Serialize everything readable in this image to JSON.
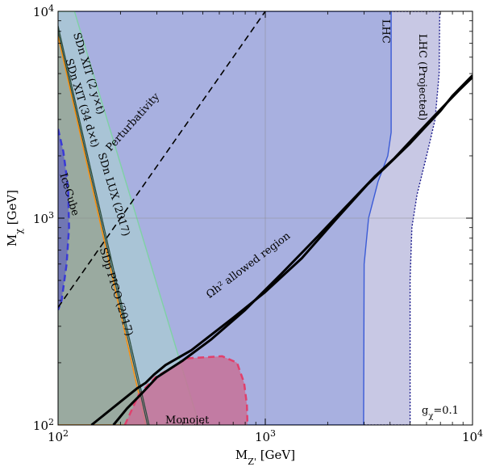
{
  "chart_data": {
    "type": "area",
    "title": "",
    "xlabel": "M_Z' [GeV]",
    "ylabel": "M_χ [GeV]",
    "xscale": "log",
    "yscale": "log",
    "xlim": [
      100,
      10000
    ],
    "ylim": [
      100,
      10000
    ],
    "grid": true,
    "x_ticks": [
      {
        "value": 100,
        "mant": "10",
        "exp": "2"
      },
      {
        "value": 1000,
        "mant": "10",
        "exp": "3"
      },
      {
        "value": 10000,
        "mant": "10",
        "exp": "4"
      }
    ],
    "y_ticks": [
      {
        "value": 100,
        "mant": "10",
        "exp": "2"
      },
      {
        "value": 1000,
        "mant": "10",
        "exp": "3"
      },
      {
        "value": 10000,
        "mant": "10",
        "exp": "4"
      }
    ],
    "regions": [
      {
        "name": "LHC (Projected)",
        "fill": "#c8c8e4",
        "edge": "#1a1a8c",
        "edge_style": "dotted",
        "boundary": [
          [
            100,
            10000
          ],
          [
            6950,
            10000
          ],
          [
            6900,
            5000
          ],
          [
            6600,
            3000
          ],
          [
            6000,
            2000
          ],
          [
            5400,
            1300
          ],
          [
            5100,
            900
          ],
          [
            5000,
            500
          ],
          [
            5000,
            100
          ],
          [
            100,
            100
          ]
        ]
      },
      {
        "name": "LHC",
        "fill": "#a8b0e0",
        "edge": "#3b5bd6",
        "edge_style": "solid",
        "boundary": [
          [
            100,
            10000
          ],
          [
            4050,
            10000
          ],
          [
            4050,
            2600
          ],
          [
            3900,
            2000
          ],
          [
            3500,
            1500
          ],
          [
            3150,
            1000
          ],
          [
            3000,
            600
          ],
          [
            2980,
            100
          ],
          [
            100,
            100
          ]
        ]
      },
      {
        "name": "SDn XIT (2 y×t)",
        "fill": "#a9c4d6",
        "edge": "#7fd1a5",
        "edge_style": "solid",
        "boundary": [
          [
            100,
            10000
          ],
          [
            120,
            10000
          ],
          [
            480,
            100
          ],
          [
            100,
            100
          ]
        ]
      },
      {
        "name": "SDp PICO (2017)",
        "fill": "#9aaaa0",
        "edge": "#ff8c00",
        "edge_style": "solid",
        "boundary": [
          [
            100,
            7600
          ],
          [
            265,
            100
          ],
          [
            100,
            100
          ]
        ]
      },
      {
        "name": "IceCube",
        "fill": "#6a6fb6",
        "edge": "#3a3ad6",
        "edge_style": "dashed",
        "boundary": [
          [
            100,
            2700
          ],
          [
            106,
            2100
          ],
          [
            112,
            1400
          ],
          [
            113,
            900
          ],
          [
            110,
            600
          ],
          [
            104,
            400
          ],
          [
            100,
            360
          ]
        ]
      },
      {
        "name": "Monojet",
        "fill": "#c77298",
        "edge": "#e0406c",
        "edge_style": "dashed",
        "boundary": [
          [
            210,
            100
          ],
          [
            245,
            140
          ],
          [
            295,
            170
          ],
          [
            420,
            210
          ],
          [
            620,
            215
          ],
          [
            730,
            200
          ],
          [
            790,
            160
          ],
          [
            815,
            125
          ],
          [
            820,
            100
          ]
        ]
      }
    ],
    "lines": [
      {
        "name": "Perturbativity",
        "style": "dashed",
        "color": "#000000",
        "points": [
          [
            100,
            370
          ],
          [
            1000,
            10000
          ]
        ]
      },
      {
        "name": "SDn XIT (34 d×t)",
        "style": "solid",
        "color": "#2f4f3f",
        "points": [
          [
            100,
            8500
          ],
          [
            275,
            100
          ]
        ]
      },
      {
        "name": "SDn LUX (2017)",
        "style": "solid",
        "color": "#2f4f3f",
        "points": [
          [
            100,
            8000
          ],
          [
            270,
            100
          ]
        ]
      },
      {
        "name": "Ωh² allowed region (upper)",
        "style": "solid",
        "color": "#000000",
        "points": [
          [
            145,
            100
          ],
          [
            240,
            150
          ],
          [
            265,
            160
          ],
          [
            290,
            175
          ],
          [
            330,
            195
          ],
          [
            440,
            230
          ],
          [
            700,
            330
          ],
          [
            1000,
            440
          ],
          [
            1500,
            640
          ],
          [
            2200,
            990
          ],
          [
            3100,
            1450
          ],
          [
            4000,
            1850
          ],
          [
            5000,
            2300
          ],
          [
            6000,
            2800
          ],
          [
            7000,
            3300
          ],
          [
            8000,
            3900
          ],
          [
            9000,
            4400
          ],
          [
            10000,
            4900
          ]
        ]
      },
      {
        "name": "Ωh² allowed region (lower)",
        "style": "solid",
        "color": "#000000",
        "points": [
          [
            185,
            100
          ],
          [
            215,
            120
          ],
          [
            250,
            140
          ],
          [
            300,
            170
          ],
          [
            400,
            205
          ],
          [
            550,
            260
          ],
          [
            800,
            360
          ],
          [
            1200,
            540
          ],
          [
            1800,
            820
          ],
          [
            2500,
            1160
          ],
          [
            3400,
            1600
          ],
          [
            4200,
            1950
          ],
          [
            5200,
            2450
          ],
          [
            6300,
            3000
          ],
          [
            7400,
            3550
          ],
          [
            8600,
            4150
          ],
          [
            10000,
            4800
          ]
        ]
      }
    ],
    "labels": [
      {
        "text": "Perturbativity",
        "x": 230,
        "y": 2900,
        "angle": -48
      },
      {
        "text": "SDn XIT (2 y×t)",
        "x": 140,
        "y": 5000,
        "angle": 73
      },
      {
        "text": "SDn XIT (34 d×t)",
        "x": 130,
        "y": 3600,
        "angle": 73
      },
      {
        "text": "SDn LUX (2017)",
        "x": 185,
        "y": 1300,
        "angle": 73
      },
      {
        "text": "SDp PICO (2017)",
        "x": 190,
        "y": 440,
        "angle": 73
      },
      {
        "text": "IceCube",
        "x": 113,
        "y": 1300,
        "angle": 73
      },
      {
        "text": "Ωh² allowed region",
        "x": 830,
        "y": 590,
        "angle": -37
      },
      {
        "text": "Monojet",
        "x": 420,
        "y": 105,
        "angle": 0
      },
      {
        "text": "LHC",
        "x": 3800,
        "y": 8000,
        "angle": 90
      },
      {
        "text": "LHC (Projected)",
        "x": 5700,
        "y": 4800,
        "angle": 90
      }
    ],
    "annotation": {
      "prefix": "g",
      "sub": "χ",
      "suffix": "=0.1"
    }
  }
}
